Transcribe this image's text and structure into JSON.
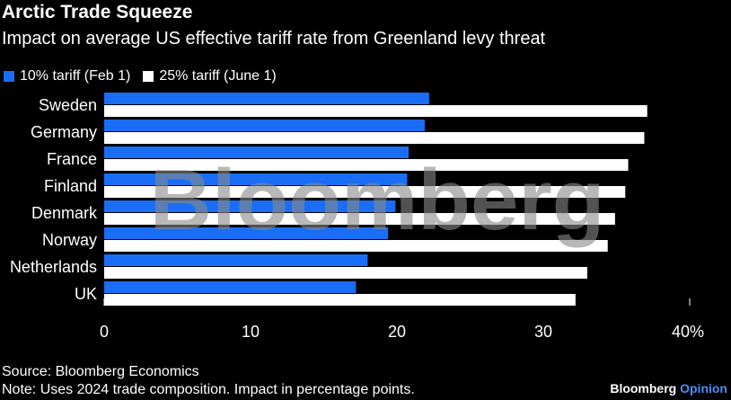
{
  "header": {
    "title": "Arctic Trade Squeeze",
    "subtitle": "Impact on average US effective tariff rate from Greenland levy threat"
  },
  "footer": {
    "source": "Source: Bloomberg Economics",
    "note": "Note: Uses 2024 trade composition. Impact in percentage points.",
    "brand": "Bloomberg",
    "brand_accent": "Opinion",
    "watermark": "Bloomberg"
  },
  "chart_data": {
    "type": "bar",
    "orientation": "horizontal",
    "categories": [
      "Sweden",
      "Germany",
      "France",
      "Finland",
      "Denmark",
      "Norway",
      "Netherlands",
      "UK"
    ],
    "series": [
      {
        "name": "10% tariff (Feb 1)",
        "color": "#1a6ef5",
        "values": [
          22.2,
          21.9,
          20.8,
          20.7,
          19.9,
          19.4,
          18.0,
          17.2
        ]
      },
      {
        "name": "25% tariff (June 1)",
        "color": "#ffffff",
        "values": [
          37.1,
          36.9,
          35.8,
          35.6,
          34.9,
          34.4,
          33.0,
          32.2
        ]
      }
    ],
    "xlim": [
      0,
      40
    ],
    "ticks": [
      0,
      10,
      20,
      30,
      40
    ],
    "tick_labels": [
      "0",
      "10",
      "20",
      "30",
      "40%"
    ],
    "legend": "top-left",
    "grid": false
  }
}
